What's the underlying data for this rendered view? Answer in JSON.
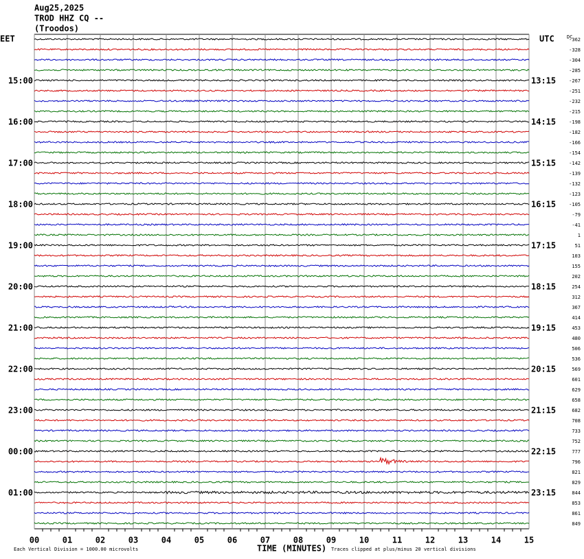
{
  "header": {
    "date": "Aug25,2025",
    "station": "TROD HHZ CQ --",
    "location": "(Troodos)"
  },
  "left_zone": "EET",
  "right_zone": "UTC",
  "dc_label": "DC",
  "left_hours": [
    "15:00",
    "16:00",
    "17:00",
    "18:00",
    "19:00",
    "20:00",
    "21:00",
    "22:00",
    "23:00",
    "00:00",
    "01:00"
  ],
  "right_hours": [
    "13:15",
    "14:15",
    "15:15",
    "16:15",
    "17:15",
    "18:15",
    "19:15",
    "20:15",
    "21:15",
    "22:15",
    "23:15"
  ],
  "dc_offsets": [
    -362,
    -328,
    -304,
    -285,
    -267,
    -251,
    -232,
    -215,
    -198,
    -182,
    -166,
    -154,
    -142,
    -139,
    -132,
    -123,
    -105,
    -79,
    -41,
    1,
    51,
    103,
    155,
    202,
    254,
    312,
    367,
    414,
    453,
    480,
    506,
    536,
    569,
    601,
    629,
    658,
    682,
    708,
    733,
    752,
    777,
    796,
    821,
    829,
    844,
    853,
    861,
    849
  ],
  "x_ticks": [
    "00",
    "01",
    "02",
    "03",
    "04",
    "05",
    "06",
    "07",
    "08",
    "09",
    "10",
    "11",
    "12",
    "13",
    "14",
    "15"
  ],
  "footer": {
    "scale": "Each Vertical Division = 1000.00 microvolts",
    "x_label": "TIME (MINUTES)",
    "clip_note": "Traces clipped at plus/minus 20 vertical divisions"
  }
}
